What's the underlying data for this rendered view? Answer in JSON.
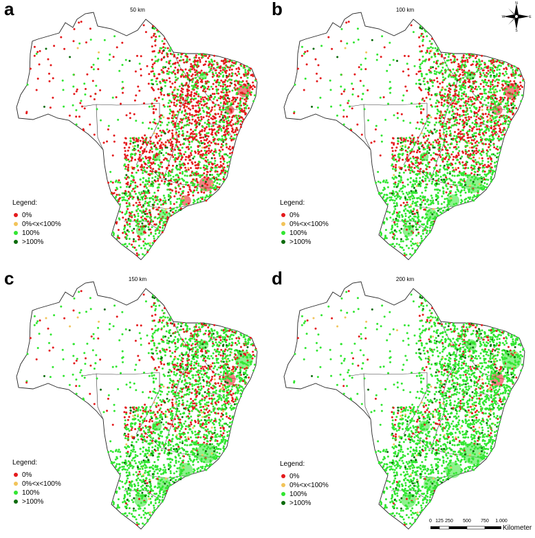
{
  "panels": [
    {
      "letter": "a",
      "title": "50 km"
    },
    {
      "letter": "b",
      "title": "100 km"
    },
    {
      "letter": "c",
      "title": "150 km"
    },
    {
      "letter": "d",
      "title": "200 km"
    }
  ],
  "legend": {
    "title": "Legend:",
    "items": [
      {
        "label": "0%",
        "color": "#e41a1c"
      },
      {
        "label": "0%<x<100%",
        "color": "#f2c45a"
      },
      {
        "label": "100%",
        "color": "#32e632"
      },
      {
        "label": ">100%",
        "color": "#0b6b0b"
      }
    ]
  },
  "compass": {
    "n": "N",
    "s": "S",
    "e": "E",
    "w": "W"
  },
  "scale": {
    "ticks": [
      "0",
      "125",
      "250",
      "500",
      "750",
      "1.000"
    ],
    "unit": "Kilometer"
  }
}
